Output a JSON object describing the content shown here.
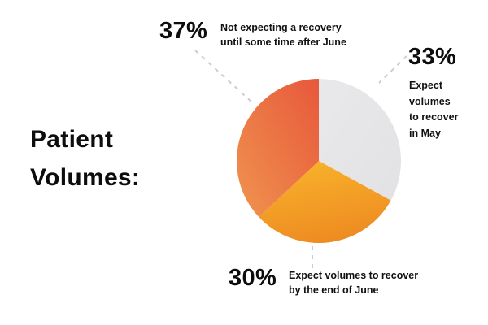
{
  "title": {
    "line1": "Patient",
    "line2": "Volumes:"
  },
  "callouts": {
    "after_june": {
      "pct": "37%",
      "lines": [
        "Not expecting a recovery",
        "until some time after June"
      ]
    },
    "may": {
      "pct": "33%",
      "lines": [
        "Expect",
        "volumes",
        "to recover",
        "in May"
      ]
    },
    "end_of_june": {
      "pct": "30%",
      "lines": [
        "Expect volumes to recover",
        "by the end of June"
      ]
    }
  },
  "chart_data": {
    "type": "pie",
    "title": "Patient Volumes:",
    "start_angle_deg": 0,
    "direction": "clockwise",
    "legend_position": "callouts",
    "slices": [
      {
        "label": "Expect volumes to recover in May",
        "value": 33,
        "colors": [
          "#e9e9eb",
          "#e2e2e4"
        ]
      },
      {
        "label": "Expect volumes to recover by the end of June",
        "value": 30,
        "colors": [
          "#f9b42b",
          "#ee8c22"
        ]
      },
      {
        "label": "Not expecting a recovery until some time after June",
        "value": 37,
        "colors": [
          "#e7583b",
          "#f0944f"
        ]
      }
    ],
    "leader_line_color": "#c8cdd2",
    "background_color": "#ffffff",
    "text_color": "#0d0d0d"
  }
}
